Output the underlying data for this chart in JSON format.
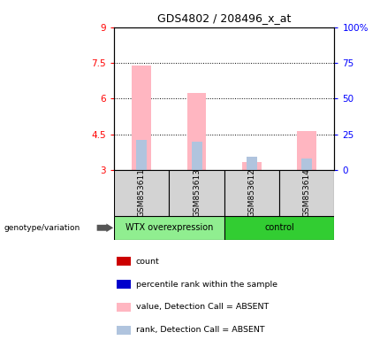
{
  "title": "GDS4802 / 208496_x_at",
  "samples": [
    "GSM853611",
    "GSM853613",
    "GSM853612",
    "GSM853614"
  ],
  "groups": [
    "WTX overexpression",
    "WTX overexpression",
    "control",
    "control"
  ],
  "bar_values": [
    7.4,
    6.25,
    3.35,
    4.65
  ],
  "bar_base": 3.0,
  "rank_values": [
    4.25,
    4.2,
    3.55,
    3.5
  ],
  "rank_base": 3.0,
  "bar_color_absent": "#FFB6C1",
  "rank_color_absent": "#B0C4DE",
  "ylim_left": [
    3.0,
    9.0
  ],
  "ylim_right": [
    0,
    100
  ],
  "yticks_left": [
    3.0,
    4.5,
    6.0,
    7.5,
    9.0
  ],
  "ytick_labels_left": [
    "3",
    "4.5",
    "6",
    "7.5",
    "9"
  ],
  "yticks_right": [
    0,
    25,
    50,
    75,
    100
  ],
  "ytick_labels_right": [
    "0",
    "25",
    "50",
    "75",
    "100%"
  ],
  "dotted_lines": [
    4.5,
    6.0,
    7.5
  ],
  "group_color_wtx": "#90EE90",
  "group_color_ctrl": "#32CD32",
  "legend_items": [
    {
      "color": "#CC0000",
      "label": "count"
    },
    {
      "color": "#0000CC",
      "label": "percentile rank within the sample"
    },
    {
      "color": "#FFB6C1",
      "label": "value, Detection Call = ABSENT"
    },
    {
      "color": "#B0C4DE",
      "label": "rank, Detection Call = ABSENT"
    }
  ]
}
